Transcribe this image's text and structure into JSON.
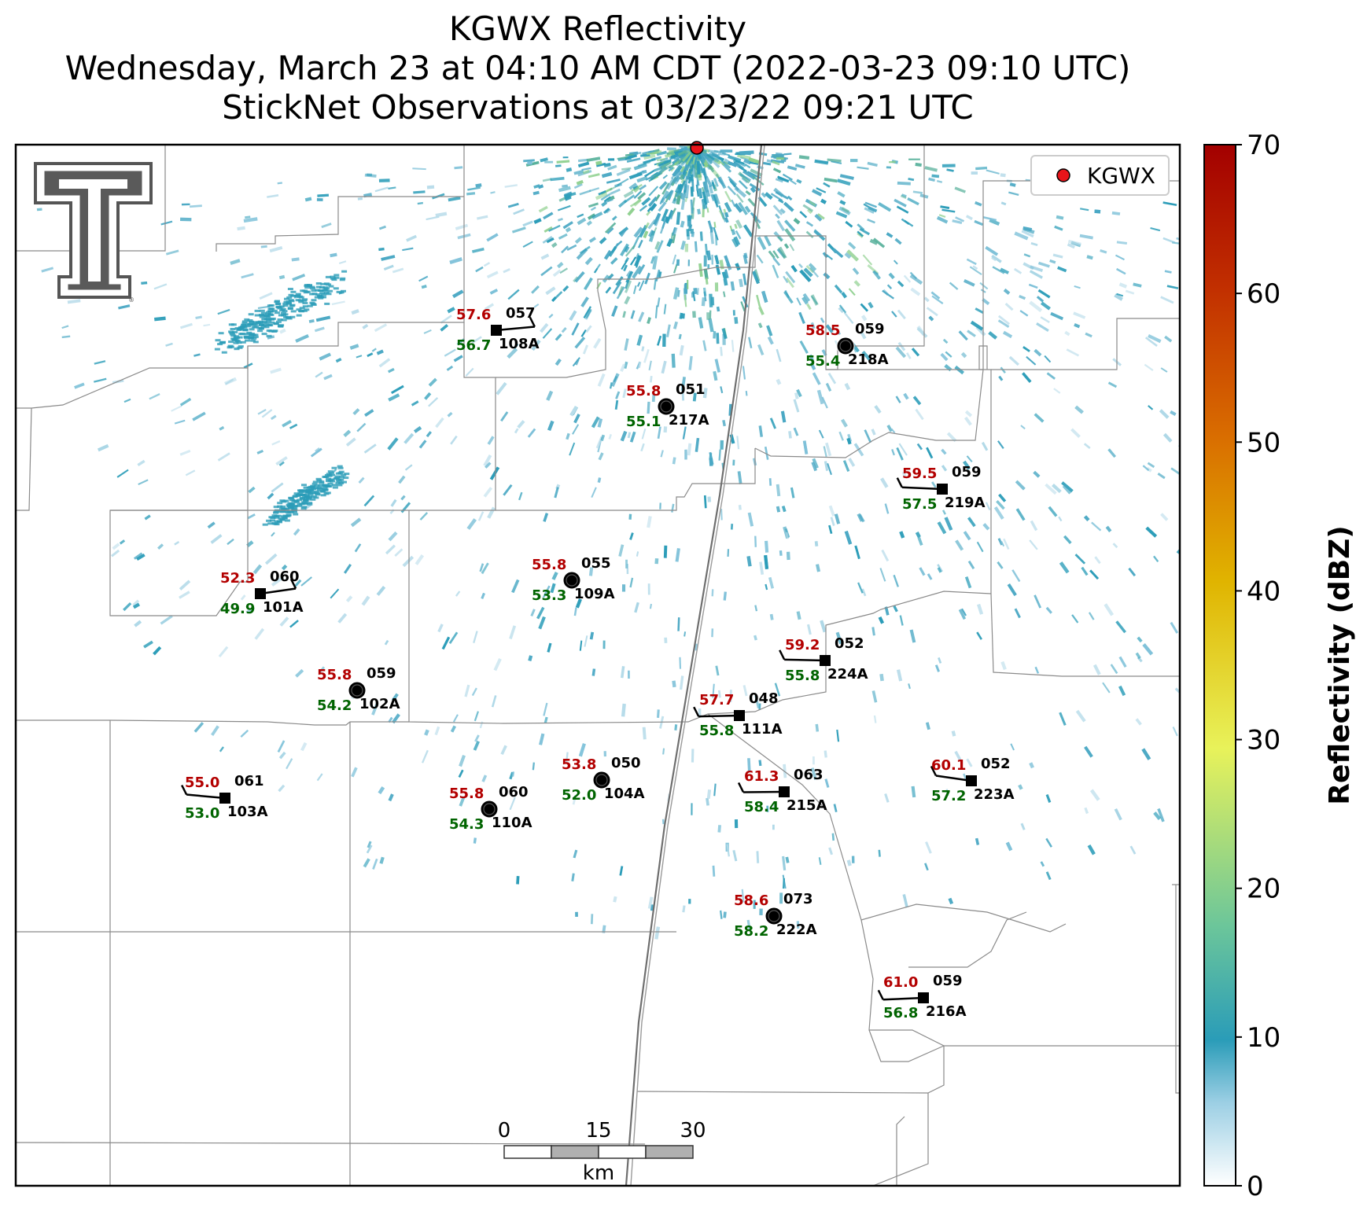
{
  "title": {
    "line1": "KGWX Reflectivity",
    "line2": "Wednesday, March 23 at 04:10 AM CDT (2022-03-23 09:10 UTC)",
    "line3": "StickNet Observations at 03/23/22 09:21 UTC"
  },
  "legend": {
    "label": "KGWX",
    "marker_color": "#e8141a"
  },
  "logo": {
    "text": "TT",
    "color": "#5a5a5a"
  },
  "colorbar": {
    "label": "Reflectivity (dBZ)",
    "min": 0,
    "max": 70,
    "ticks": [
      "0",
      "10",
      "20",
      "30",
      "40",
      "50",
      "60",
      "70"
    ],
    "colors": [
      "#ffffff",
      "#2a9cb8",
      "#6cc69a",
      "#e8f25a",
      "#e0b400",
      "#d96d00",
      "#c23000",
      "#a30000"
    ]
  },
  "scalebar": {
    "ticks": [
      "0",
      "15",
      "30"
    ],
    "unit": "km"
  },
  "colors": {
    "temperature": "#b30000",
    "dewpoint": "#006400",
    "station": "#000000",
    "border": "#8a8a8a"
  },
  "stations": [
    {
      "id": "108A",
      "temp": "57.6",
      "dew": "56.7",
      "pres": "057"
    },
    {
      "id": "218A",
      "temp": "58.5",
      "dew": "55.4",
      "pres": "059"
    },
    {
      "id": "217A",
      "temp": "55.8",
      "dew": "55.1",
      "pres": "051"
    },
    {
      "id": "219A",
      "temp": "59.5",
      "dew": "57.5",
      "pres": "059"
    },
    {
      "id": "101A",
      "temp": "52.3",
      "dew": "49.9",
      "pres": "060"
    },
    {
      "id": "109A",
      "temp": "55.8",
      "dew": "53.3",
      "pres": "055"
    },
    {
      "id": "224A",
      "temp": "59.2",
      "dew": "55.8",
      "pres": "052"
    },
    {
      "id": "102A",
      "temp": "55.8",
      "dew": "54.2",
      "pres": "059"
    },
    {
      "id": "111A",
      "temp": "57.7",
      "dew": "55.8",
      "pres": "048"
    },
    {
      "id": "103A",
      "temp": "55.0",
      "dew": "53.0",
      "pres": "061"
    },
    {
      "id": "104A",
      "temp": "53.8",
      "dew": "52.0",
      "pres": "050"
    },
    {
      "id": "110A",
      "temp": "55.8",
      "dew": "54.3",
      "pres": "060"
    },
    {
      "id": "215A",
      "temp": "61.3",
      "dew": "58.4",
      "pres": "063"
    },
    {
      "id": "223A",
      "temp": "60.1",
      "dew": "57.2",
      "pres": "052"
    },
    {
      "id": "222A",
      "temp": "58.6",
      "dew": "58.2",
      "pres": "073"
    },
    {
      "id": "216A",
      "temp": "61.0",
      "dew": "56.8",
      "pres": "059"
    }
  ]
}
